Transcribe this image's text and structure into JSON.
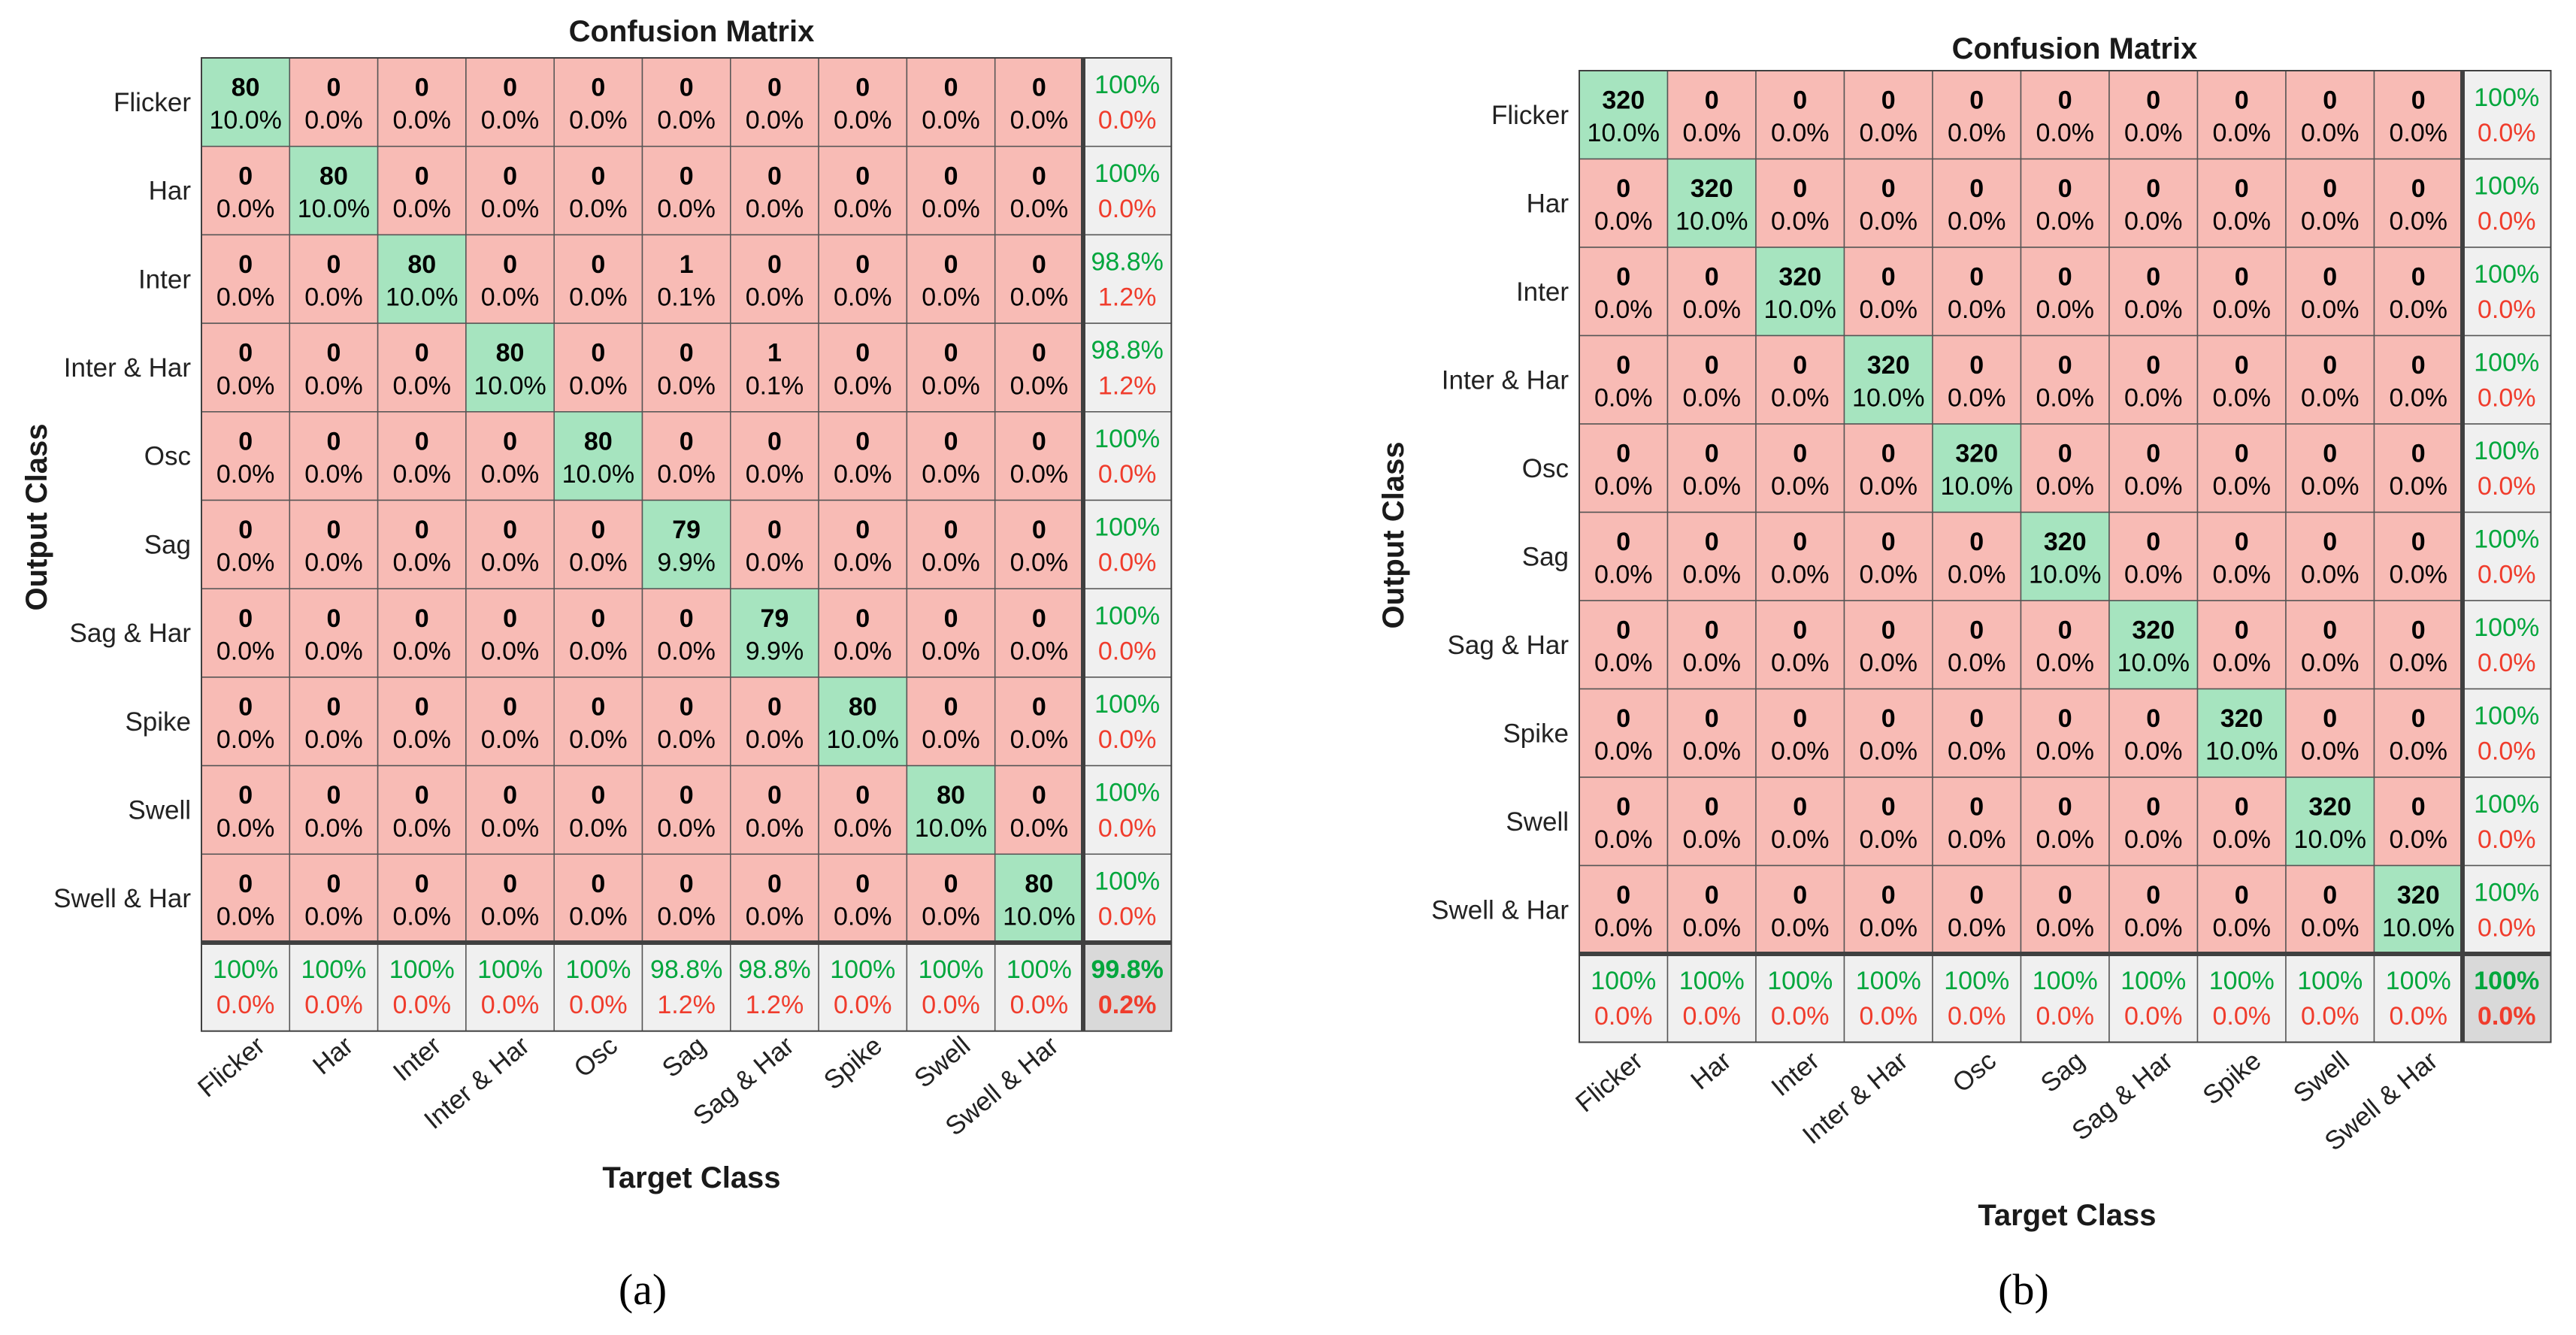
{
  "colors": {
    "correct_cell": "#a6e4bf",
    "error_cell": "#f8bbb5",
    "summary_cell": "#f0f0f0",
    "total_cell": "#d9d9d9",
    "correct_text": "#00a63c",
    "error_text": "#f03c2c",
    "grid_line": "#555555"
  },
  "chart_data": [
    {
      "type": "heatmap",
      "title": "Confusion Matrix",
      "subfigure_label": "(a)",
      "xlabel": "Target Class",
      "ylabel": "Output Class",
      "classes": [
        "Flicker",
        "Har",
        "Inter",
        "Inter & Har",
        "Osc",
        "Sag",
        "Sag & Har",
        "Spike",
        "Swell",
        "Swell & Har"
      ],
      "counts": [
        [
          80,
          0,
          0,
          0,
          0,
          0,
          0,
          0,
          0,
          0
        ],
        [
          0,
          80,
          0,
          0,
          0,
          0,
          0,
          0,
          0,
          0
        ],
        [
          0,
          0,
          80,
          0,
          0,
          1,
          0,
          0,
          0,
          0
        ],
        [
          0,
          0,
          0,
          80,
          0,
          0,
          1,
          0,
          0,
          0
        ],
        [
          0,
          0,
          0,
          0,
          80,
          0,
          0,
          0,
          0,
          0
        ],
        [
          0,
          0,
          0,
          0,
          0,
          79,
          0,
          0,
          0,
          0
        ],
        [
          0,
          0,
          0,
          0,
          0,
          0,
          79,
          0,
          0,
          0
        ],
        [
          0,
          0,
          0,
          0,
          0,
          0,
          0,
          80,
          0,
          0
        ],
        [
          0,
          0,
          0,
          0,
          0,
          0,
          0,
          0,
          80,
          0
        ],
        [
          0,
          0,
          0,
          0,
          0,
          0,
          0,
          0,
          0,
          80
        ]
      ],
      "percents": [
        [
          "10.0%",
          "0.0%",
          "0.0%",
          "0.0%",
          "0.0%",
          "0.0%",
          "0.0%",
          "0.0%",
          "0.0%",
          "0.0%"
        ],
        [
          "0.0%",
          "10.0%",
          "0.0%",
          "0.0%",
          "0.0%",
          "0.0%",
          "0.0%",
          "0.0%",
          "0.0%",
          "0.0%"
        ],
        [
          "0.0%",
          "0.0%",
          "10.0%",
          "0.0%",
          "0.0%",
          "0.1%",
          "0.0%",
          "0.0%",
          "0.0%",
          "0.0%"
        ],
        [
          "0.0%",
          "0.0%",
          "0.0%",
          "10.0%",
          "0.0%",
          "0.0%",
          "0.1%",
          "0.0%",
          "0.0%",
          "0.0%"
        ],
        [
          "0.0%",
          "0.0%",
          "0.0%",
          "0.0%",
          "10.0%",
          "0.0%",
          "0.0%",
          "0.0%",
          "0.0%",
          "0.0%"
        ],
        [
          "0.0%",
          "0.0%",
          "0.0%",
          "0.0%",
          "0.0%",
          "9.9%",
          "0.0%",
          "0.0%",
          "0.0%",
          "0.0%"
        ],
        [
          "0.0%",
          "0.0%",
          "0.0%",
          "0.0%",
          "0.0%",
          "0.0%",
          "9.9%",
          "0.0%",
          "0.0%",
          "0.0%"
        ],
        [
          "0.0%",
          "0.0%",
          "0.0%",
          "0.0%",
          "0.0%",
          "0.0%",
          "0.0%",
          "10.0%",
          "0.0%",
          "0.0%"
        ],
        [
          "0.0%",
          "0.0%",
          "0.0%",
          "0.0%",
          "0.0%",
          "0.0%",
          "0.0%",
          "0.0%",
          "10.0%",
          "0.0%"
        ],
        [
          "0.0%",
          "0.0%",
          "0.0%",
          "0.0%",
          "0.0%",
          "0.0%",
          "0.0%",
          "0.0%",
          "0.0%",
          "10.0%"
        ]
      ],
      "row_summary": [
        [
          "100%",
          "0.0%"
        ],
        [
          "100%",
          "0.0%"
        ],
        [
          "98.8%",
          "1.2%"
        ],
        [
          "98.8%",
          "1.2%"
        ],
        [
          "100%",
          "0.0%"
        ],
        [
          "100%",
          "0.0%"
        ],
        [
          "100%",
          "0.0%"
        ],
        [
          "100%",
          "0.0%"
        ],
        [
          "100%",
          "0.0%"
        ],
        [
          "100%",
          "0.0%"
        ]
      ],
      "col_summary": [
        [
          "100%",
          "0.0%"
        ],
        [
          "100%",
          "0.0%"
        ],
        [
          "100%",
          "0.0%"
        ],
        [
          "100%",
          "0.0%"
        ],
        [
          "100%",
          "0.0%"
        ],
        [
          "98.8%",
          "1.2%"
        ],
        [
          "98.8%",
          "1.2%"
        ],
        [
          "100%",
          "0.0%"
        ],
        [
          "100%",
          "0.0%"
        ],
        [
          "100%",
          "0.0%"
        ]
      ],
      "overall": [
        "99.8%",
        "0.2%"
      ]
    },
    {
      "type": "heatmap",
      "title": "Confusion Matrix",
      "subfigure_label": "(b)",
      "xlabel": "Target Class",
      "ylabel": "Output Class",
      "classes": [
        "Flicker",
        "Har",
        "Inter",
        "Inter & Har",
        "Osc",
        "Sag",
        "Sag & Har",
        "Spike",
        "Swell",
        "Swell & Har"
      ],
      "counts": [
        [
          320,
          0,
          0,
          0,
          0,
          0,
          0,
          0,
          0,
          0
        ],
        [
          0,
          320,
          0,
          0,
          0,
          0,
          0,
          0,
          0,
          0
        ],
        [
          0,
          0,
          320,
          0,
          0,
          0,
          0,
          0,
          0,
          0
        ],
        [
          0,
          0,
          0,
          320,
          0,
          0,
          0,
          0,
          0,
          0
        ],
        [
          0,
          0,
          0,
          0,
          320,
          0,
          0,
          0,
          0,
          0
        ],
        [
          0,
          0,
          0,
          0,
          0,
          320,
          0,
          0,
          0,
          0
        ],
        [
          0,
          0,
          0,
          0,
          0,
          0,
          320,
          0,
          0,
          0
        ],
        [
          0,
          0,
          0,
          0,
          0,
          0,
          0,
          320,
          0,
          0
        ],
        [
          0,
          0,
          0,
          0,
          0,
          0,
          0,
          0,
          320,
          0
        ],
        [
          0,
          0,
          0,
          0,
          0,
          0,
          0,
          0,
          0,
          320
        ]
      ],
      "percents": [
        [
          "10.0%",
          "0.0%",
          "0.0%",
          "0.0%",
          "0.0%",
          "0.0%",
          "0.0%",
          "0.0%",
          "0.0%",
          "0.0%"
        ],
        [
          "0.0%",
          "10.0%",
          "0.0%",
          "0.0%",
          "0.0%",
          "0.0%",
          "0.0%",
          "0.0%",
          "0.0%",
          "0.0%"
        ],
        [
          "0.0%",
          "0.0%",
          "10.0%",
          "0.0%",
          "0.0%",
          "0.0%",
          "0.0%",
          "0.0%",
          "0.0%",
          "0.0%"
        ],
        [
          "0.0%",
          "0.0%",
          "0.0%",
          "10.0%",
          "0.0%",
          "0.0%",
          "0.0%",
          "0.0%",
          "0.0%",
          "0.0%"
        ],
        [
          "0.0%",
          "0.0%",
          "0.0%",
          "0.0%",
          "10.0%",
          "0.0%",
          "0.0%",
          "0.0%",
          "0.0%",
          "0.0%"
        ],
        [
          "0.0%",
          "0.0%",
          "0.0%",
          "0.0%",
          "0.0%",
          "10.0%",
          "0.0%",
          "0.0%",
          "0.0%",
          "0.0%"
        ],
        [
          "0.0%",
          "0.0%",
          "0.0%",
          "0.0%",
          "0.0%",
          "0.0%",
          "10.0%",
          "0.0%",
          "0.0%",
          "0.0%"
        ],
        [
          "0.0%",
          "0.0%",
          "0.0%",
          "0.0%",
          "0.0%",
          "0.0%",
          "0.0%",
          "10.0%",
          "0.0%",
          "0.0%"
        ],
        [
          "0.0%",
          "0.0%",
          "0.0%",
          "0.0%",
          "0.0%",
          "0.0%",
          "0.0%",
          "0.0%",
          "10.0%",
          "0.0%"
        ],
        [
          "0.0%",
          "0.0%",
          "0.0%",
          "0.0%",
          "0.0%",
          "0.0%",
          "0.0%",
          "0.0%",
          "0.0%",
          "10.0%"
        ]
      ],
      "row_summary": [
        [
          "100%",
          "0.0%"
        ],
        [
          "100%",
          "0.0%"
        ],
        [
          "100%",
          "0.0%"
        ],
        [
          "100%",
          "0.0%"
        ],
        [
          "100%",
          "0.0%"
        ],
        [
          "100%",
          "0.0%"
        ],
        [
          "100%",
          "0.0%"
        ],
        [
          "100%",
          "0.0%"
        ],
        [
          "100%",
          "0.0%"
        ],
        [
          "100%",
          "0.0%"
        ]
      ],
      "col_summary": [
        [
          "100%",
          "0.0%"
        ],
        [
          "100%",
          "0.0%"
        ],
        [
          "100%",
          "0.0%"
        ],
        [
          "100%",
          "0.0%"
        ],
        [
          "100%",
          "0.0%"
        ],
        [
          "100%",
          "0.0%"
        ],
        [
          "100%",
          "0.0%"
        ],
        [
          "100%",
          "0.0%"
        ],
        [
          "100%",
          "0.0%"
        ],
        [
          "100%",
          "0.0%"
        ]
      ],
      "overall": [
        "100%",
        "0.0%"
      ]
    }
  ]
}
